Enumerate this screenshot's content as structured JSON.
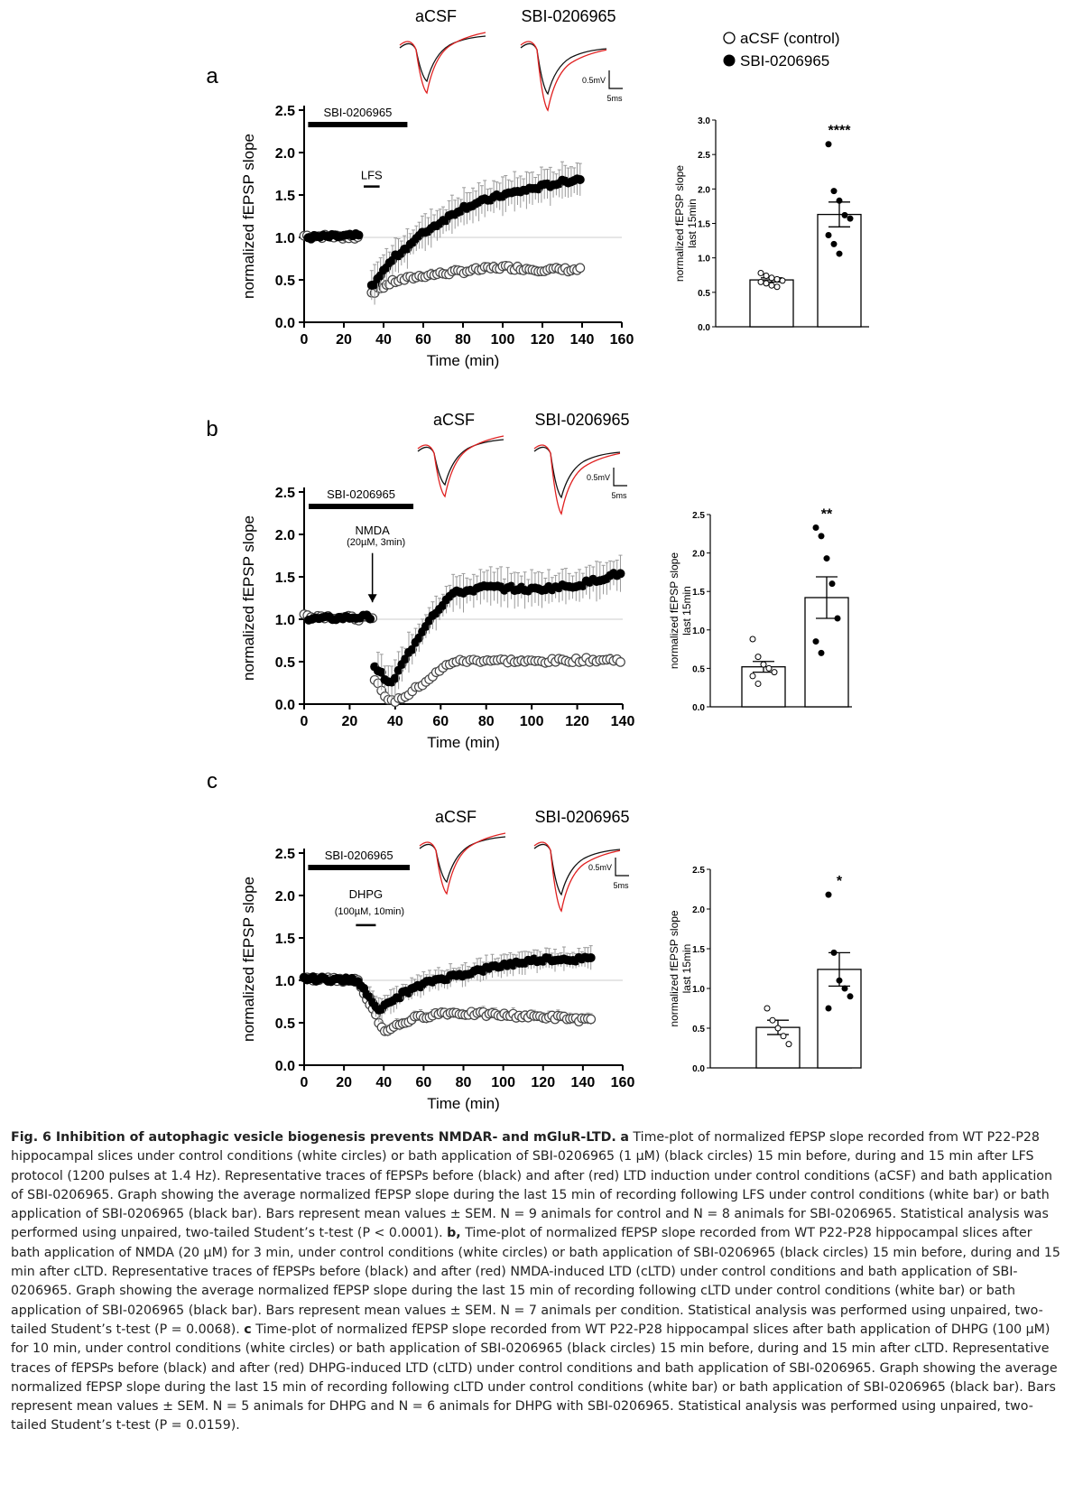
{
  "legend": {
    "control": "aCSF (control)",
    "drug": "SBI-0206965"
  },
  "panels": [
    {
      "letter": "a",
      "drug_bar_label": "SBI-0206965",
      "induction_label": "LFS",
      "induction_sub": "",
      "ylabel": "normalized fEPSP slope",
      "xlabel": "Time (min)",
      "xticks": [
        0,
        20,
        40,
        60,
        80,
        100,
        120,
        140,
        160
      ],
      "yticks": [
        "0.0",
        "0.5",
        "1.0",
        "1.5",
        "2.0",
        "2.5"
      ],
      "trace_labels": [
        "aCSF",
        "SBI-0206965"
      ],
      "scale_v": "0.5mV",
      "scale_t": "5ms",
      "bar_ylabel": [
        "normalized fEPSP slope",
        "last 15min"
      ],
      "bar_yticks": [
        "0.0",
        "0.5",
        "1.0",
        "1.5",
        "2.0",
        "2.5",
        "3.0"
      ],
      "significance": "****"
    },
    {
      "letter": "b",
      "drug_bar_label": "SBI-0206965",
      "induction_label": "NMDA",
      "induction_sub": "(20µM, 3min)",
      "ylabel": "normalized fEPSP slope",
      "xlabel": "Time (min)",
      "xticks": [
        0,
        20,
        40,
        60,
        80,
        100,
        120,
        140
      ],
      "yticks": [
        "0.0",
        "0.5",
        "1.0",
        "1.5",
        "2.0",
        "2.5"
      ],
      "trace_labels": [
        "aCSF",
        "SBI-0206965"
      ],
      "scale_v": "0.5mV",
      "scale_t": "5ms",
      "bar_ylabel": [
        "normalized fEPSP slope",
        "last 15min"
      ],
      "bar_yticks": [
        "0.0",
        "0.5",
        "1.0",
        "1.5",
        "2.0",
        "2.5"
      ],
      "significance": "**"
    },
    {
      "letter": "c",
      "drug_bar_label": "SBI-0206965",
      "induction_label": "DHPG",
      "induction_sub": "(100µM, 10min)",
      "ylabel": "normalized fEPSP slope",
      "xlabel": "Time (min)",
      "xticks": [
        0,
        20,
        40,
        60,
        80,
        100,
        120,
        140,
        160
      ],
      "yticks": [
        "0.0",
        "0.5",
        "1.0",
        "1.5",
        "2.0",
        "2.5"
      ],
      "trace_labels": [
        "aCSF",
        "SBI-0206965"
      ],
      "scale_v": "0.5mV",
      "scale_t": "5ms",
      "bar_ylabel": [
        "normalized fEPSP slope",
        "last 15min"
      ],
      "bar_yticks": [
        "0.0",
        "0.5",
        "1.0",
        "1.5",
        "2.0",
        "2.5"
      ],
      "significance": "*"
    }
  ],
  "chart_data": [
    {
      "type": "scatter",
      "title": "a",
      "xlabel": "Time (min)",
      "ylabel": "normalized fEPSP slope",
      "xlim": [
        0,
        160
      ],
      "ylim": [
        0,
        2.5
      ],
      "drug_window_min": [
        2,
        52
      ],
      "induction_window_min": [
        30,
        38
      ],
      "series": [
        {
          "name": "aCSF (control)",
          "segments": [
            {
              "t": [
                0,
                28
              ],
              "v": [
                1.02,
                1.0
              ]
            },
            {
              "t": [
                34,
                45,
                60,
                80,
                100,
                120,
                140
              ],
              "v": [
                0.35,
                0.48,
                0.55,
                0.6,
                0.65,
                0.62,
                0.62
              ]
            }
          ],
          "sem": 0.05
        },
        {
          "name": "SBI-0206965",
          "segments": [
            {
              "t": [
                2,
                28
              ],
              "v": [
                1.0,
                1.02
              ]
            },
            {
              "t": [
                34,
                45,
                60,
                80,
                100,
                120,
                140
              ],
              "v": [
                0.42,
                0.75,
                1.05,
                1.35,
                1.5,
                1.6,
                1.7
              ]
            }
          ],
          "sem": 0.2
        }
      ]
    },
    {
      "type": "bar",
      "title": "a last 15min",
      "ylabel": "normalized fEPSP slope last 15min",
      "ylim": [
        0,
        3.0
      ],
      "categories": [
        "aCSF (control)",
        "SBI-0206965"
      ],
      "values": [
        0.68,
        1.63
      ],
      "sem": [
        0.03,
        0.18
      ],
      "points": [
        [
          0.78,
          0.74,
          0.71,
          0.69,
          0.67,
          0.65,
          0.63,
          0.6,
          0.58
        ],
        [
          2.65,
          1.97,
          1.83,
          1.62,
          1.57,
          1.33,
          1.2,
          1.06
        ]
      ]
    },
    {
      "type": "scatter",
      "title": "b",
      "xlabel": "Time (min)",
      "ylabel": "normalized fEPSP slope",
      "xlim": [
        0,
        140
      ],
      "ylim": [
        0,
        2.5
      ],
      "drug_window_min": [
        2,
        48
      ],
      "series": [
        {
          "name": "aCSF (control)",
          "segments": [
            {
              "t": [
                0,
                30
              ],
              "v": [
                1.05,
                1.0
              ]
            },
            {
              "t": [
                31,
                38,
                45,
                55,
                65,
                80,
                100,
                120,
                140
              ],
              "v": [
                0.28,
                0.02,
                0.1,
                0.3,
                0.5,
                0.52,
                0.5,
                0.52,
                0.52
              ]
            }
          ],
          "sem": 0.05
        },
        {
          "name": "SBI-0206965",
          "segments": [
            {
              "t": [
                2,
                30
              ],
              "v": [
                1.0,
                1.03
              ]
            },
            {
              "t": [
                31,
                38,
                45,
                55,
                65,
                80,
                100,
                120,
                140
              ],
              "v": [
                0.45,
                0.22,
                0.55,
                1.0,
                1.3,
                1.38,
                1.35,
                1.4,
                1.55
              ]
            }
          ],
          "sem": 0.2
        }
      ]
    },
    {
      "type": "bar",
      "title": "b last 15min",
      "ylabel": "normalized fEPSP slope last 15min",
      "ylim": [
        0,
        2.5
      ],
      "categories": [
        "aCSF (control)",
        "SBI-0206965"
      ],
      "values": [
        0.52,
        1.42
      ],
      "sem": [
        0.07,
        0.27
      ],
      "points": [
        [
          0.88,
          0.65,
          0.55,
          0.5,
          0.45,
          0.4,
          0.3
        ],
        [
          2.33,
          2.22,
          1.93,
          1.6,
          1.15,
          0.85,
          0.7
        ]
      ]
    },
    {
      "type": "scatter",
      "title": "c",
      "xlabel": "Time (min)",
      "ylabel": "normalized fEPSP slope",
      "xlim": [
        0,
        160
      ],
      "ylim": [
        0,
        2.5
      ],
      "drug_window_min": [
        2,
        53
      ],
      "induction_window_min": [
        26,
        36
      ],
      "series": [
        {
          "name": "aCSF (control)",
          "segments": [
            {
              "t": [
                0,
                27,
                40,
                55,
                70,
                90,
                110,
                130,
                145
              ],
              "v": [
                1.02,
                1.0,
                0.4,
                0.55,
                0.62,
                0.6,
                0.58,
                0.56,
                0.52
              ]
            }
          ],
          "sem": 0.06
        },
        {
          "name": "SBI-0206965",
          "segments": [
            {
              "t": [
                0,
                27,
                38,
                50,
                65,
                85,
                100,
                120,
                145
              ],
              "v": [
                1.02,
                1.0,
                0.65,
                0.85,
                1.0,
                1.1,
                1.18,
                1.25,
                1.25
              ]
            }
          ],
          "sem": 0.12
        }
      ]
    },
    {
      "type": "bar",
      "title": "c last 15min",
      "ylabel": "normalized fEPSP slope last 15min",
      "ylim": [
        0,
        2.5
      ],
      "categories": [
        "aCSF (control)",
        "SBI-0206965"
      ],
      "values": [
        0.51,
        1.24
      ],
      "sem": [
        0.09,
        0.21
      ],
      "points": [
        [
          0.75,
          0.6,
          0.5,
          0.4,
          0.3
        ],
        [
          2.18,
          1.45,
          1.1,
          1.0,
          0.9,
          0.75
        ]
      ]
    }
  ],
  "caption": {
    "title": "Fig. 6 Inhibition of autophagic vesicle biogenesis prevents NMDAR- and mGluR-LTD.",
    "a_label": "a",
    "a_text": "Time-plot of normalized fEPSP slope recorded from WT P22-P28 hippocampal slices under control conditions (white circles) or bath application of SBI-0206965 (1 µM) (black circles) 15 min before, during and 15 min after LFS protocol (1200 pulses at 1.4 Hz). Representative traces of fEPSPs before (black) and after (red) LTD induction under control conditions (aCSF) and bath application of SBI-0206965. Graph showing the average normalized fEPSP slope during the last 15 min of recording following LFS under control conditions (white bar) or bath application of SBI-0206965 (black bar). Bars represent mean values ± SEM. N = 9 animals for control and N = 8 animals for SBI-0206965. Statistical analysis was performed using unpaired, two-tailed Student’s t-test (P < 0.0001).",
    "b_label": "b,",
    "b_text": "Time-plot of normalized fEPSP slope recorded from WT P22-P28 hippocampal slices after bath application of NMDA (20 µM) for 3 min, under control conditions (white circles) or bath application of SBI-0206965 (black circles) 15 min before, during and 15 min after cLTD. Representative traces of fEPSPs before (black) and after (red) NMDA-induced LTD (cLTD) under control conditions and bath application of SBI-0206965. Graph showing the average normalized fEPSP slope during the last 15 min of recording following cLTD under control conditions (white bar) or bath application of SBI-0206965 (black bar). Bars represent mean values ± SEM. N = 7 animals per condition. Statistical analysis was performed using unpaired, two-tailed Student’s t-test (P = 0.0068).",
    "c_label": "c",
    "c_text": "Time-plot of normalized fEPSP slope recorded from WT P22-P28 hippocampal slices after bath application of DHPG (100 µM) for 10 min, under control conditions (white circles) or bath application of SBI-0206965 (black circles) 15 min before, during and 15 min after cLTD. Representative traces of fEPSPs before (black) and after (red) DHPG-induced LTD (cLTD) under control conditions and bath application of SBI-0206965. Graph showing the average normalized fEPSP slope during the last 15 min of recording following cLTD under control conditions (white bar) or bath application of SBI-0206965 (black bar). Bars represent mean values ± SEM. N = 5 animals for DHPG and N = 6 animals for DHPG with SBI-0206965. Statistical analysis was performed using unpaired, two-tailed Student’s t-test (P = 0.0159)."
  }
}
